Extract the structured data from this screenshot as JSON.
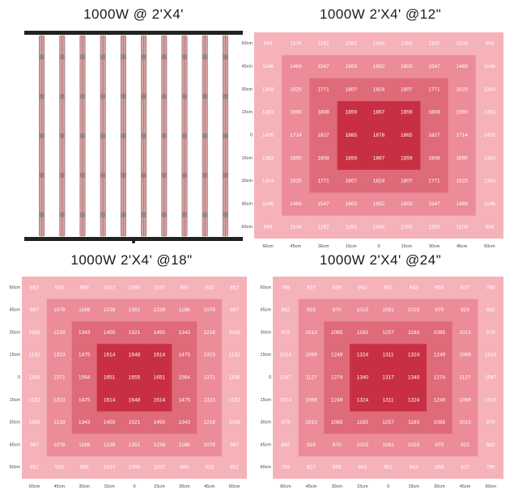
{
  "titles": {
    "fixture": "1000W @ 2'X4'",
    "h12": "1000W 2'X4' @12\"",
    "h18": "1000W 2'X4' @18\"",
    "h24": "1000W 2'X4' @24\""
  },
  "fixture": {
    "bar_count": 10,
    "frame_color": "#222222",
    "bar_color": "#d4a0a0"
  },
  "colors": {
    "level0": "#f5b2b9",
    "level1": "#eb8c98",
    "level2": "#df6a79",
    "level3": "#c92f44"
  },
  "chart_data": [
    {
      "type": "heatmap",
      "title": "1000W 2'X4' @12\"",
      "xlabels": [
        "60cm",
        "45cm",
        "30cm",
        "15cm",
        "0",
        "15cm",
        "30cm",
        "45cm",
        "60cm"
      ],
      "ylabels": [
        "60cm",
        "45cm",
        "30cm",
        "15cm",
        "0",
        "15cm",
        "30cm",
        "45cm",
        "60cm"
      ],
      "values": [
        [
          994,
          1104,
          1192,
          1283,
          1344,
          1283,
          1192,
          1104,
          994
        ],
        [
          1146,
          1469,
          1547,
          1603,
          1652,
          1603,
          1547,
          1469,
          1146
        ],
        [
          1304,
          1625,
          1771,
          1807,
          1824,
          1807,
          1771,
          1625,
          1304
        ],
        [
          1383,
          1690,
          1808,
          1859,
          1867,
          1859,
          1808,
          1690,
          1383
        ],
        [
          1435,
          1714,
          1827,
          1865,
          1876,
          1865,
          1827,
          1714,
          1435
        ],
        [
          1383,
          1690,
          1808,
          1859,
          1867,
          1859,
          1808,
          1690,
          1383
        ],
        [
          1304,
          1625,
          1771,
          1807,
          1824,
          1807,
          1771,
          1625,
          1304
        ],
        [
          1146,
          1469,
          1547,
          1603,
          1652,
          1603,
          1547,
          1469,
          1146
        ],
        [
          994,
          1104,
          1192,
          1283,
          1344,
          1283,
          1192,
          1104,
          994
        ]
      ]
    },
    {
      "type": "heatmap",
      "title": "1000W 2'X4' @18\"",
      "xlabels": [
        "60cm",
        "45cm",
        "30cm",
        "15cm",
        "0",
        "15cm",
        "30cm",
        "45cm",
        "60cm"
      ],
      "ylabels": [
        "60cm",
        "45cm",
        "30cm",
        "15cm",
        "0",
        "15cm",
        "30cm",
        "45cm",
        "60cm"
      ],
      "values": [
        [
          852,
          933,
          980,
          1037,
          1090,
          1037,
          980,
          933,
          852
        ],
        [
          987,
          1078,
          1186,
          1238,
          1351,
          1238,
          1186,
          1078,
          987
        ],
        [
          1068,
          1218,
          1343,
          1450,
          1521,
          1450,
          1343,
          1218,
          1068
        ],
        [
          1132,
          1323,
          1475,
          1614,
          1648,
          1614,
          1475,
          1323,
          1132
        ],
        [
          1186,
          1371,
          1564,
          1651,
          1655,
          1651,
          1564,
          1371,
          1186
        ],
        [
          1132,
          1323,
          1475,
          1614,
          1648,
          1614,
          1475,
          1323,
          1132
        ],
        [
          1068,
          1218,
          1343,
          1450,
          1521,
          1450,
          1343,
          1218,
          1068
        ],
        [
          987,
          1078,
          1186,
          1238,
          1351,
          1238,
          1186,
          1078,
          987
        ],
        [
          852,
          933,
          980,
          1037,
          1090,
          1037,
          980,
          933,
          852
        ]
      ]
    },
    {
      "type": "heatmap",
      "title": "1000W 2'X4' @24\"",
      "xlabels": [
        "60cm",
        "45cm",
        "30cm",
        "15cm",
        "0",
        "15cm",
        "30cm",
        "45cm",
        "60cm"
      ],
      "ylabels": [
        "60cm",
        "45cm",
        "30cm",
        "15cm",
        "0",
        "15cm",
        "30cm",
        "45cm",
        "60cm"
      ],
      "values": [
        [
          786,
          827,
          856,
          943,
          981,
          943,
          856,
          827,
          786
        ],
        [
          882,
          923,
          970,
          1015,
          1081,
          1015,
          970,
          923,
          882
        ],
        [
          979,
          1013,
          1085,
          1183,
          1257,
          1183,
          1085,
          1013,
          979
        ],
        [
          1014,
          1069,
          1249,
          1324,
          1311,
          1324,
          1249,
          1069,
          1014
        ],
        [
          1047,
          1127,
          1274,
          1340,
          1317,
          1340,
          1274,
          1127,
          1047
        ],
        [
          1014,
          1069,
          1249,
          1324,
          1311,
          1324,
          1249,
          1069,
          1014
        ],
        [
          979,
          1013,
          1085,
          1183,
          1257,
          1183,
          1085,
          1013,
          979
        ],
        [
          882,
          923,
          970,
          1015,
          1081,
          1015,
          970,
          923,
          882
        ],
        [
          786,
          827,
          856,
          943,
          981,
          943,
          856,
          827,
          786
        ]
      ]
    }
  ]
}
